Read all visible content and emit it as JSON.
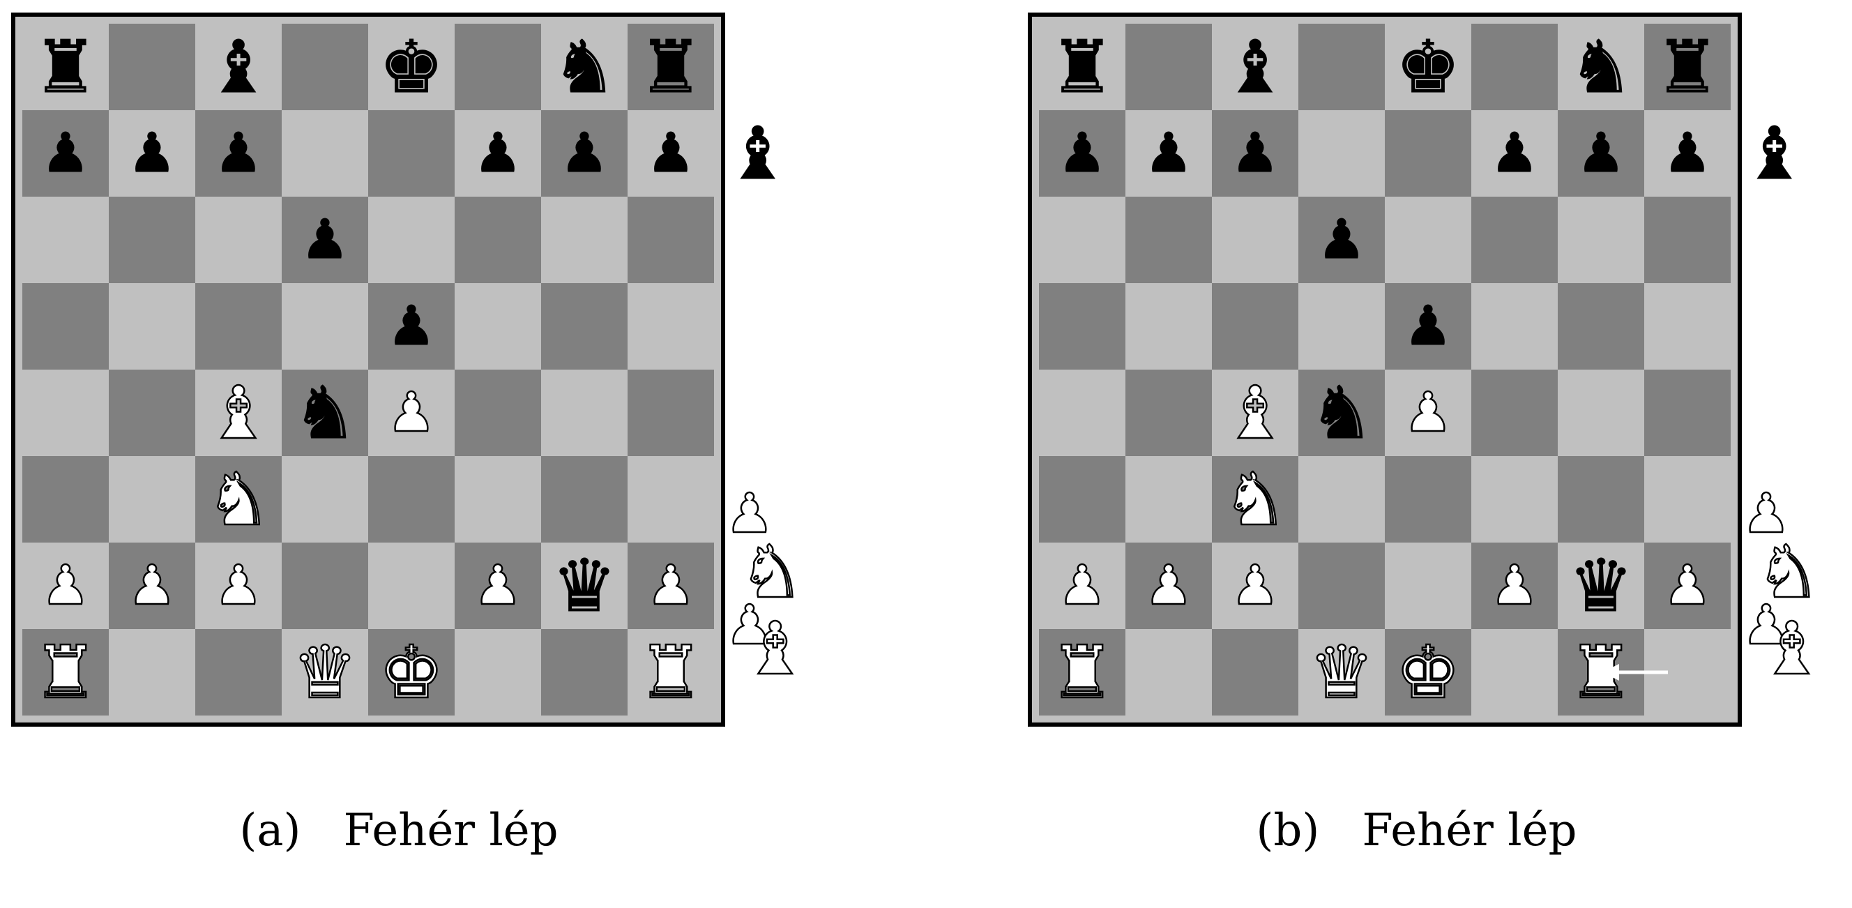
{
  "colors": {
    "light_square": "#c0c0c0",
    "dark_square": "#808080",
    "frame": "#000000"
  },
  "diagrams": [
    {
      "caption_label": "(a)",
      "caption_text": "Fehér lép",
      "position": [
        [
          "br",
          "",
          "bb",
          "",
          "bk",
          "",
          "bn",
          "br"
        ],
        [
          "bp",
          "bp",
          "bp",
          "",
          "",
          "bp",
          "bp",
          "bp"
        ],
        [
          "",
          "",
          "",
          "bp",
          "",
          "",
          "",
          ""
        ],
        [
          "",
          "",
          "",
          "",
          "bp",
          "",
          "",
          ""
        ],
        [
          "",
          "",
          "wb",
          "bn",
          "wp",
          "",
          "",
          ""
        ],
        [
          "",
          "",
          "wn",
          "",
          "",
          "",
          "",
          ""
        ],
        [
          "wp",
          "wp",
          "wp",
          "",
          "",
          "wp",
          "bq",
          "wp"
        ],
        [
          "wr",
          "",
          "",
          "wq",
          "wk",
          "",
          "",
          "wr"
        ]
      ],
      "captured_black": [
        "bb"
      ],
      "captured_white": [
        "wp",
        "wn",
        "wp",
        "wb"
      ],
      "arrow_square": ""
    },
    {
      "caption_label": "(b)",
      "caption_text": "Fehér lép",
      "position": [
        [
          "br",
          "",
          "bb",
          "",
          "bk",
          "",
          "bn",
          "br"
        ],
        [
          "bp",
          "bp",
          "bp",
          "",
          "",
          "bp",
          "bp",
          "bp"
        ],
        [
          "",
          "",
          "",
          "bp",
          "",
          "",
          "",
          ""
        ],
        [
          "",
          "",
          "",
          "",
          "bp",
          "",
          "",
          ""
        ],
        [
          "",
          "",
          "wb",
          "bn",
          "wp",
          "",
          "",
          ""
        ],
        [
          "",
          "",
          "wn",
          "",
          "",
          "",
          "",
          ""
        ],
        [
          "wp",
          "wp",
          "wp",
          "",
          "",
          "wp",
          "bq",
          "wp"
        ],
        [
          "wr",
          "",
          "",
          "wq",
          "wk",
          "",
          "wr",
          ""
        ]
      ],
      "captured_black": [
        "bb"
      ],
      "captured_white": [
        "wp",
        "wn",
        "wp",
        "wb"
      ],
      "arrow_square": "g1"
    }
  ]
}
